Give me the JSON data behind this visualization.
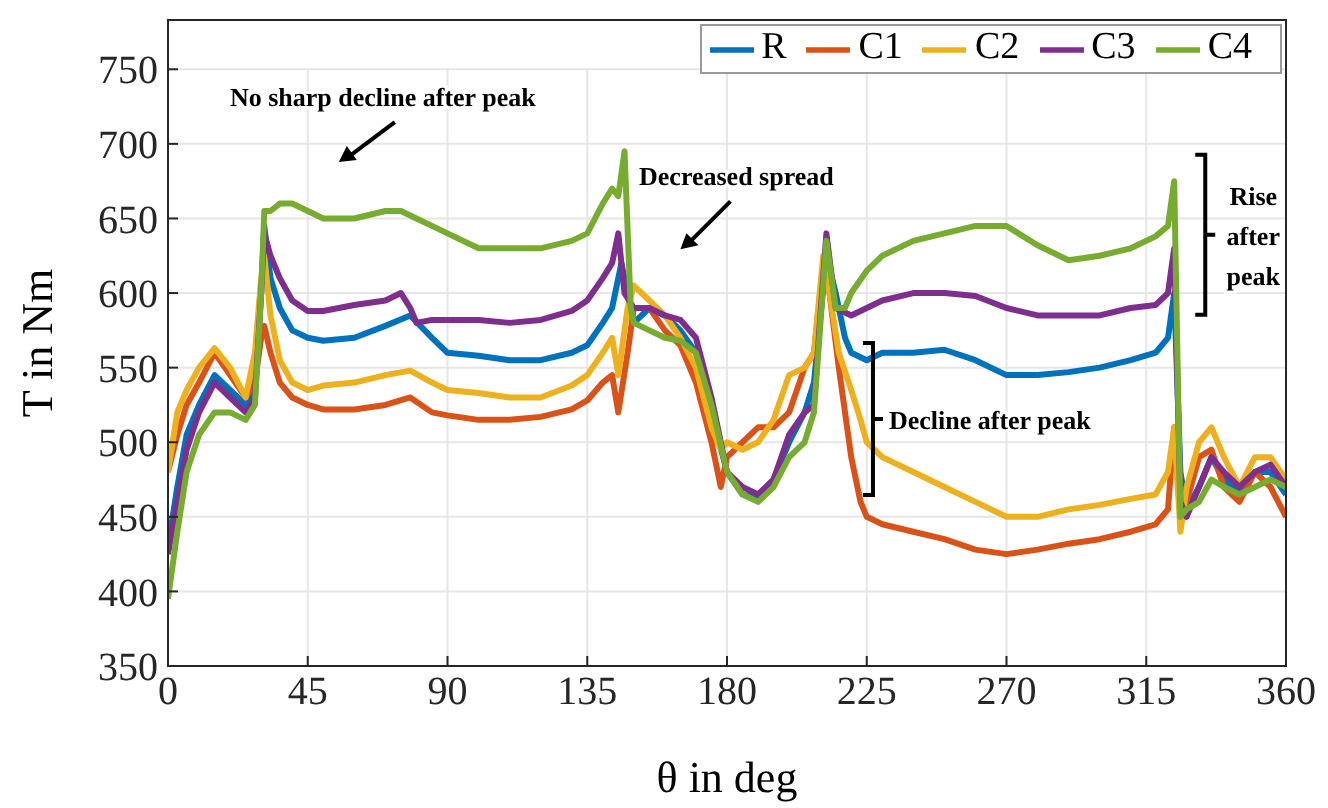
{
  "chart_data": {
    "type": "line",
    "xlabel": "θ in deg",
    "ylabel": "T in Nm",
    "xlim": [
      0,
      360
    ],
    "xticks": [
      0,
      45,
      90,
      135,
      180,
      225,
      270,
      315,
      360
    ],
    "ylim": [
      350,
      750
    ],
    "yticks": [
      350,
      400,
      450,
      500,
      550,
      600,
      650,
      700,
      750
    ],
    "grid": true,
    "legend": "top right",
    "marker": "none",
    "line_style": "solid",
    "annotations": [
      "No sharp decline after peak",
      "Decreased spread",
      "Decline after peak",
      "Rise after peak"
    ],
    "series": [
      {
        "name": "R",
        "color": "#0072bd",
        "x": [
          0,
          3,
          6,
          10,
          15,
          20,
          25,
          28,
          30,
          31,
          33,
          36,
          40,
          45,
          50,
          60,
          70,
          78,
          85,
          90,
          100,
          110,
          120,
          130,
          135,
          140,
          143,
          146,
          148,
          150,
          155,
          160,
          165,
          170,
          175,
          180,
          185,
          190,
          195,
          200,
          205,
          208,
          212,
          215,
          218,
          220,
          225,
          230,
          240,
          250,
          260,
          270,
          280,
          290,
          300,
          310,
          318,
          322,
          324,
          326,
          328,
          332,
          336,
          340,
          345,
          350,
          355,
          360
        ],
        "values": [
          430,
          470,
          505,
          525,
          545,
          535,
          525,
          540,
          600,
          645,
          610,
          590,
          575,
          570,
          568,
          570,
          578,
          585,
          570,
          560,
          558,
          555,
          555,
          560,
          565,
          580,
          590,
          620,
          600,
          580,
          590,
          585,
          575,
          560,
          520,
          480,
          465,
          462,
          475,
          500,
          520,
          540,
          625,
          600,
          570,
          560,
          555,
          560,
          560,
          562,
          555,
          545,
          545,
          547,
          550,
          555,
          560,
          570,
          600,
          480,
          455,
          470,
          490,
          475,
          465,
          480,
          480,
          465
        ]
      },
      {
        "name": "C1",
        "color": "#d95319",
        "x": [
          0,
          3,
          6,
          10,
          15,
          20,
          25,
          28,
          30,
          31,
          33,
          36,
          40,
          45,
          50,
          60,
          70,
          78,
          85,
          90,
          100,
          110,
          120,
          130,
          135,
          140,
          143,
          145,
          148,
          150,
          155,
          160,
          165,
          170,
          175,
          178,
          180,
          185,
          190,
          195,
          200,
          205,
          208,
          211,
          213,
          216,
          220,
          223,
          225,
          230,
          240,
          250,
          260,
          270,
          280,
          290,
          300,
          310,
          318,
          322,
          324,
          326,
          328,
          332,
          336,
          340,
          345,
          350,
          355,
          360
        ],
        "values": [
          480,
          505,
          525,
          540,
          560,
          545,
          530,
          540,
          570,
          578,
          560,
          540,
          530,
          525,
          522,
          522,
          525,
          530,
          520,
          518,
          515,
          515,
          517,
          522,
          528,
          540,
          545,
          520,
          560,
          590,
          590,
          575,
          565,
          540,
          500,
          470,
          490,
          500,
          510,
          510,
          520,
          550,
          560,
          620,
          600,
          550,
          490,
          460,
          450,
          445,
          440,
          435,
          428,
          425,
          428,
          432,
          435,
          440,
          445,
          455,
          510,
          450,
          460,
          490,
          495,
          470,
          460,
          480,
          470,
          450
        ]
      },
      {
        "name": "C2",
        "color": "#edb120",
        "x": [
          0,
          3,
          6,
          10,
          15,
          20,
          25,
          28,
          30,
          31,
          33,
          36,
          40,
          45,
          50,
          60,
          70,
          78,
          85,
          90,
          100,
          110,
          120,
          130,
          135,
          140,
          143,
          145,
          148,
          150,
          155,
          160,
          165,
          170,
          175,
          178,
          180,
          185,
          190,
          195,
          200,
          205,
          208,
          211,
          213,
          216,
          220,
          223,
          225,
          230,
          240,
          250,
          260,
          270,
          280,
          290,
          300,
          310,
          318,
          322,
          324,
          326,
          328,
          332,
          336,
          340,
          345,
          350,
          355,
          360
        ],
        "values": [
          480,
          520,
          535,
          550,
          563,
          550,
          530,
          560,
          610,
          625,
          585,
          555,
          540,
          535,
          538,
          540,
          545,
          548,
          540,
          535,
          533,
          530,
          530,
          538,
          545,
          560,
          570,
          545,
          590,
          605,
          595,
          585,
          570,
          550,
          510,
          495,
          500,
          495,
          500,
          515,
          545,
          550,
          560,
          625,
          600,
          560,
          535,
          515,
          500,
          490,
          480,
          470,
          460,
          450,
          450,
          455,
          458,
          462,
          465,
          480,
          510,
          440,
          470,
          500,
          510,
          490,
          470,
          490,
          490,
          475
        ]
      },
      {
        "name": "C3",
        "color": "#7e2f8e",
        "x": [
          0,
          3,
          6,
          10,
          15,
          20,
          25,
          28,
          30,
          31,
          33,
          36,
          40,
          45,
          50,
          60,
          70,
          75,
          78,
          80,
          85,
          90,
          100,
          110,
          120,
          130,
          135,
          140,
          143,
          145,
          147,
          150,
          155,
          160,
          165,
          170,
          175,
          180,
          185,
          190,
          195,
          200,
          205,
          208,
          212,
          215,
          220,
          225,
          230,
          240,
          250,
          260,
          270,
          280,
          290,
          300,
          310,
          318,
          322,
          324,
          326,
          328,
          332,
          336,
          340,
          345,
          350,
          355,
          360
        ],
        "values": [
          425,
          460,
          495,
          520,
          540,
          530,
          520,
          530,
          600,
          640,
          625,
          610,
          595,
          588,
          588,
          592,
          595,
          600,
          590,
          580,
          582,
          582,
          582,
          580,
          582,
          588,
          595,
          610,
          620,
          640,
          600,
          590,
          590,
          585,
          582,
          570,
          530,
          480,
          470,
          465,
          475,
          505,
          520,
          525,
          640,
          590,
          585,
          590,
          595,
          600,
          600,
          598,
          590,
          585,
          585,
          585,
          590,
          592,
          600,
          630,
          460,
          450,
          470,
          490,
          480,
          470,
          480,
          485,
          470
        ]
      },
      {
        "name": "C4",
        "color": "#77ac30",
        "x": [
          0,
          3,
          6,
          10,
          15,
          20,
          25,
          28,
          30,
          31,
          33,
          36,
          40,
          45,
          50,
          60,
          70,
          75,
          80,
          85,
          90,
          100,
          110,
          120,
          130,
          135,
          140,
          143,
          145,
          147,
          149,
          150,
          155,
          160,
          165,
          170,
          175,
          180,
          185,
          190,
          195,
          200,
          205,
          208,
          212,
          215,
          218,
          220,
          225,
          230,
          240,
          250,
          260,
          270,
          280,
          290,
          300,
          310,
          318,
          322,
          324,
          326,
          328,
          332,
          336,
          340,
          345,
          350,
          355,
          360
        ],
        "values": [
          395,
          440,
          480,
          505,
          520,
          520,
          515,
          525,
          600,
          655,
          655,
          660,
          660,
          655,
          650,
          650,
          655,
          655,
          650,
          645,
          640,
          630,
          630,
          630,
          635,
          640,
          660,
          670,
          665,
          695,
          590,
          580,
          575,
          570,
          568,
          560,
          525,
          480,
          465,
          460,
          470,
          490,
          500,
          520,
          635,
          590,
          590,
          600,
          615,
          625,
          635,
          640,
          645,
          645,
          632,
          622,
          625,
          630,
          638,
          645,
          675,
          450,
          455,
          460,
          475,
          470,
          465,
          470,
          475,
          470
        ]
      }
    ]
  }
}
